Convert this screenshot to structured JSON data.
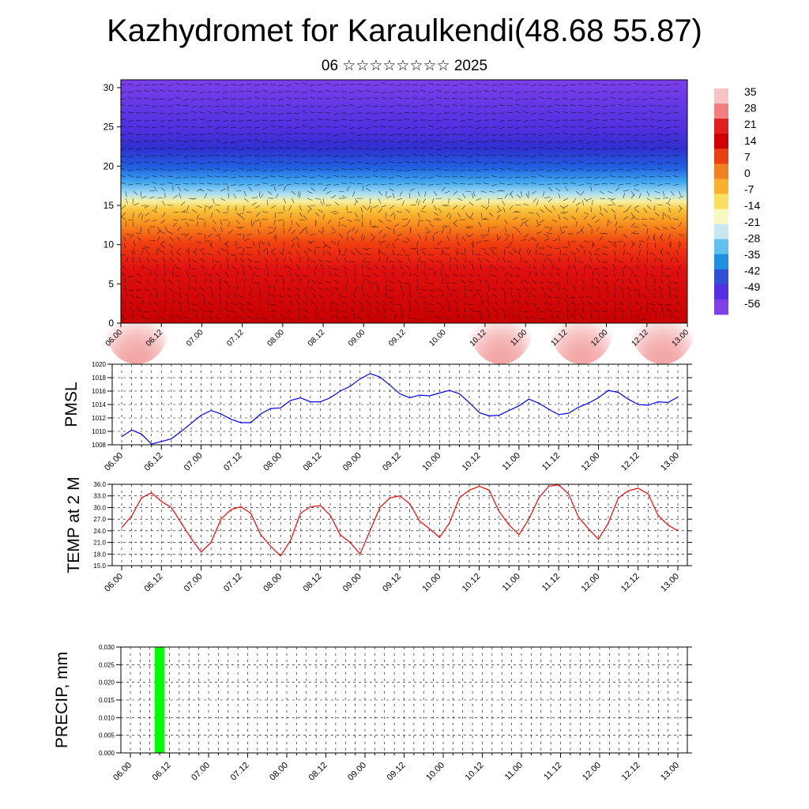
{
  "header": {
    "title": "Kazhydromet for Karaulkendi(48.68 55.87)",
    "subtitle": "06 ☆☆☆☆☆☆☆☆ 2025"
  },
  "colors": {
    "pmsl_line": "#0000ff",
    "temp_line": "#ff0000",
    "precip_bar": "#00ff00",
    "wind_barbs": "#000000"
  },
  "chart_data": [
    {
      "type": "heatmap",
      "id": "cross-section",
      "description_visible": "temperature cross-section with wind barbs",
      "x_ticks": [
        "06.00",
        "06.12",
        "07.00",
        "07.12",
        "08.00",
        "08.12",
        "09.00",
        "09.12",
        "10.00",
        "10.12",
        "11.00",
        "11.12",
        "12.00",
        "12.12",
        "13.00"
      ],
      "y_ticks": [
        0,
        5,
        10,
        15,
        20,
        25,
        30
      ],
      "ylim": [
        0,
        31
      ],
      "colorbar_labels": [
        "35",
        "28",
        "21",
        "14",
        "7",
        "0",
        "-7",
        "-14",
        "-21",
        "-28",
        "-35",
        "-42",
        "-49",
        "-56"
      ],
      "colorbar_colors": [
        "#f5c4c4",
        "#f08080",
        "#e02020",
        "#d00000",
        "#e84010",
        "#f08020",
        "#f8b030",
        "#f8e060",
        "#f8f8c0",
        "#c8e8f0",
        "#60c0f0",
        "#2090e0",
        "#3050d8",
        "#5030e0",
        "#8040e8"
      ],
      "warm_bubbles_x": [
        "06.00",
        "10.12",
        "11.12",
        "12.12"
      ]
    },
    {
      "type": "line",
      "id": "pmsl",
      "ylabel": "PMSL",
      "x_ticks": [
        "06.00",
        "06.12",
        "07.00",
        "07.12",
        "08.00",
        "08.12",
        "09.00",
        "09.12",
        "10.00",
        "10.12",
        "11.00",
        "11.12",
        "12.00",
        "12.12",
        "13.00"
      ],
      "y_ticks": [
        "1008",
        "1010",
        "1012",
        "1014",
        "1016",
        "1018",
        "1020"
      ],
      "ylim": [
        1008,
        1020
      ],
      "step_hours": 3,
      "values": [
        1009.2,
        1010.2,
        1009.6,
        1008.1,
        1008.5,
        1008.9,
        1010.0,
        1011.2,
        1012.4,
        1013.1,
        1012.6,
        1011.8,
        1011.3,
        1011.3,
        1012.6,
        1013.4,
        1013.5,
        1014.6,
        1015.0,
        1014.4,
        1014.4,
        1015.0,
        1016.0,
        1016.7,
        1017.8,
        1018.6,
        1018.1,
        1016.9,
        1015.6,
        1015.0,
        1015.4,
        1015.3,
        1015.7,
        1016.1,
        1015.6,
        1014.3,
        1012.8,
        1012.3,
        1012.4,
        1013.1,
        1013.8,
        1014.8,
        1014.2,
        1013.3,
        1012.5,
        1012.7,
        1013.6,
        1014.2,
        1015.0,
        1016.1,
        1015.8,
        1014.8,
        1014.0,
        1013.9,
        1014.4,
        1014.3,
        1015.1
      ]
    },
    {
      "type": "line",
      "id": "temp",
      "ylabel": "TEMP at 2 M",
      "x_ticks": [
        "06.00",
        "06.12",
        "07.00",
        "07.12",
        "08.00",
        "08.12",
        "09.00",
        "09.12",
        "10.00",
        "10.12",
        "11.00",
        "11.12",
        "12.00",
        "12.12",
        "13.00"
      ],
      "y_ticks": [
        "15.0",
        "18.0",
        "21.0",
        "24.0",
        "27.0",
        "30.0",
        "33.0",
        "36.0"
      ],
      "ylim": [
        15,
        36
      ],
      "step_hours": 3,
      "values": [
        24.8,
        27.8,
        32.5,
        33.8,
        31.6,
        30.0,
        26.0,
        22.0,
        18.5,
        21.0,
        27.0,
        29.5,
        30.2,
        28.5,
        23.0,
        20.0,
        17.5,
        21.5,
        28.5,
        30.2,
        30.5,
        28.0,
        23.0,
        21.0,
        18.0,
        24.0,
        30.0,
        32.5,
        33.0,
        31.0,
        26.5,
        24.5,
        22.3,
        26.0,
        32.5,
        34.5,
        35.5,
        34.5,
        29.0,
        25.5,
        23.0,
        27.0,
        32.5,
        35.5,
        35.9,
        33.5,
        27.5,
        24.5,
        21.8,
        26.0,
        32.5,
        34.3,
        35.0,
        33.5,
        28.0,
        25.5,
        24.0
      ]
    },
    {
      "type": "bar",
      "id": "precip",
      "ylabel": "PRECIP, mm",
      "x_ticks": [
        "06.00",
        "06.12",
        "07.00",
        "07.12",
        "08.00",
        "08.12",
        "09.00",
        "09.12",
        "10.00",
        "10.12",
        "11.00",
        "11.12",
        "12.00",
        "12.12",
        "13.00"
      ],
      "y_ticks": [
        "0.000",
        "0.005",
        "0.010",
        "0.015",
        "0.020",
        "0.025",
        "0.030"
      ],
      "ylim": [
        0,
        0.03
      ],
      "bars": [
        {
          "x_hour": 9,
          "value": 0.03
        }
      ]
    }
  ]
}
